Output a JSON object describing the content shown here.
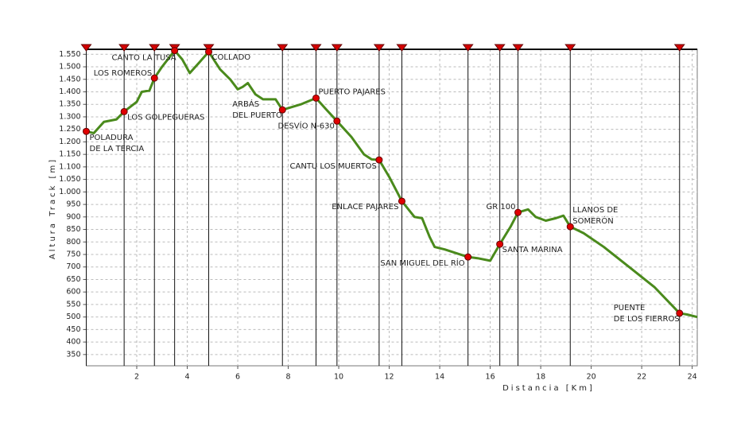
{
  "chart_data": {
    "type": "line",
    "xlabel": "Distancia [Km]",
    "ylabel": "Altura Track [m]",
    "xlim": [
      0,
      24.2
    ],
    "ylim": [
      305,
      1570
    ],
    "xticks": [
      2,
      4,
      6,
      8,
      10,
      12,
      14,
      16,
      18,
      20,
      22,
      24
    ],
    "yticks": [
      350,
      400,
      450,
      500,
      550,
      600,
      650,
      700,
      750,
      800,
      850,
      900,
      950,
      {
        "value": 1000,
        "label": "1.000"
      },
      {
        "value": 1050,
        "label": "1.050"
      },
      {
        "value": 1100,
        "label": "1.100"
      },
      {
        "value": 1150,
        "label": "1.150"
      },
      {
        "value": 1200,
        "label": "1.200"
      },
      {
        "value": 1250,
        "label": "1.250"
      },
      {
        "value": 1300,
        "label": "1.300"
      },
      {
        "value": 1350,
        "label": "1.350"
      },
      {
        "value": 1400,
        "label": "1.400"
      },
      {
        "value": 1450,
        "label": "1.450"
      },
      {
        "value": 1500,
        "label": "1.500"
      },
      {
        "value": 1550,
        "label": "1.550"
      }
    ],
    "grid": true,
    "series": [
      {
        "color": "#4a8a1c",
        "x": [
          0,
          0.3,
          0.7,
          1.2,
          1.5,
          2,
          2.2,
          2.5,
          2.7,
          3,
          3.5,
          3.8,
          4.1,
          4.5,
          4.85,
          5.3,
          5.7,
          6,
          6.2,
          6.4,
          6.7,
          7,
          7.5,
          7.77,
          8.5,
          9.1,
          9.5,
          9.93,
          10.5,
          11,
          11.3,
          11.6,
          12,
          12.5,
          13,
          13.3,
          13.6,
          13.8,
          14.2,
          15.12,
          15.5,
          16,
          16.38,
          16.8,
          17.1,
          17.5,
          17.8,
          18.2,
          18.6,
          18.9,
          19.17,
          19.7,
          20.5,
          21.5,
          22.5,
          23.5,
          23.8,
          24.2
        ],
        "values": [
          1242,
          1235,
          1280,
          1290,
          1321,
          1360,
          1400,
          1405,
          1455,
          1500,
          1565,
          1530,
          1475,
          1520,
          1560,
          1490,
          1450,
          1410,
          1420,
          1435,
          1390,
          1370,
          1370,
          1328,
          1350,
          1375,
          1330,
          1283,
          1220,
          1150,
          1130,
          1128,
          1060,
          963,
          900,
          895,
          820,
          780,
          770,
          740,
          735,
          725,
          791,
          860,
          918,
          930,
          900,
          885,
          895,
          905,
          861,
          835,
          780,
          700,
          620,
          515,
          510,
          500
        ]
      }
    ],
    "markers": [
      {
        "name": [
          "POLADURA",
          "DE LA TERCIA"
        ],
        "x": 0,
        "value": 1242
      },
      {
        "name": [
          "LOS GOLPEGUERAS"
        ],
        "x": 1.5,
        "value": 1321
      },
      {
        "name": [
          "LOS ROMEROS"
        ],
        "x": 2.7,
        "value": 1455
      },
      {
        "name": [
          "CANTO LA TUSA"
        ],
        "x": 3.5,
        "value": 1565
      },
      {
        "name": [
          "COLLADO"
        ],
        "x": 4.85,
        "value": 1560
      },
      {
        "name": [
          "ARBÁS",
          "DEL PUERTO"
        ],
        "x": 7.77,
        "value": 1328
      },
      {
        "name": [
          "PUERTO PAJARES"
        ],
        "x": 9.1,
        "value": 1375
      },
      {
        "name": [
          "DESVÍO N-630"
        ],
        "x": 9.93,
        "value": 1283
      },
      {
        "name": [
          "CANTU LOS MUERTOS"
        ],
        "x": 11.6,
        "value": 1128
      },
      {
        "name": [
          "ENLACE PAJARES"
        ],
        "x": 12.5,
        "value": 963
      },
      {
        "name": [
          "SAN MIGUEL DEL RÍO"
        ],
        "x": 15.12,
        "value": 740
      },
      {
        "name": [
          "SANTA MARINA"
        ],
        "x": 16.38,
        "value": 791
      },
      {
        "name": [
          "GR 100"
        ],
        "x": 17.1,
        "value": 918
      },
      {
        "name": [
          "LLANOS DE",
          "SOMERÓN"
        ],
        "x": 19.17,
        "value": 861
      },
      {
        "name": [
          "PUENTE",
          "DE LOS FIERROS"
        ],
        "x": 23.5,
        "value": 515
      }
    ]
  }
}
